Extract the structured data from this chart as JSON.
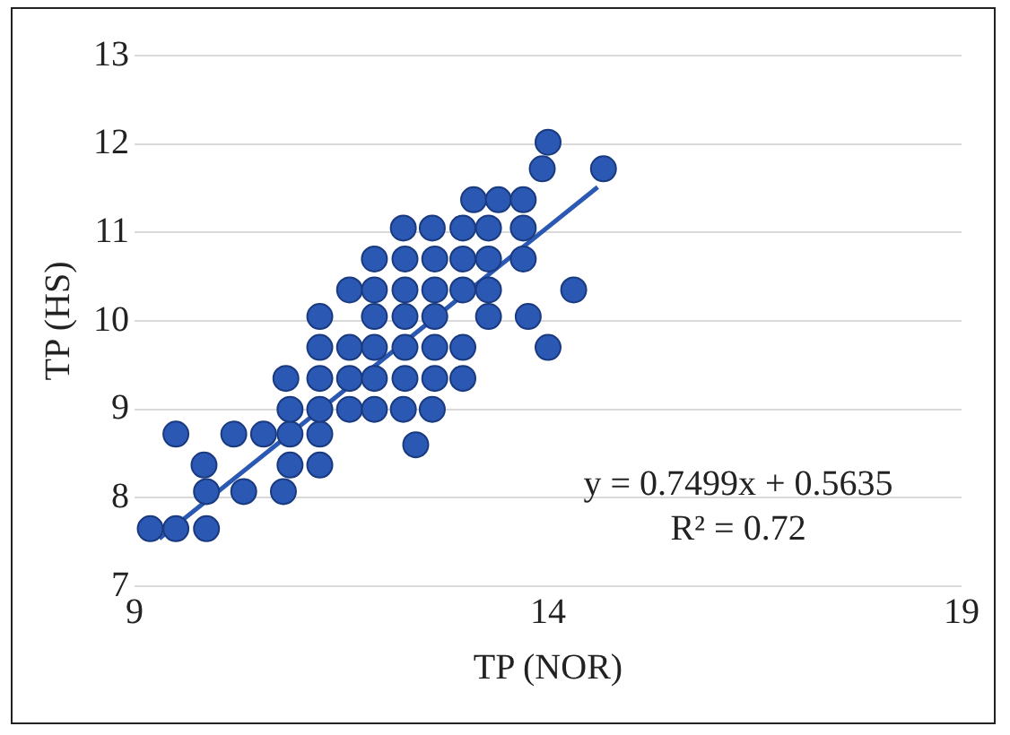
{
  "chart_data": {
    "type": "scatter",
    "xlabel": "TP (NOR)",
    "ylabel": "TP (HS)",
    "xlim": [
      9,
      19
    ],
    "xticks": [
      9,
      14,
      19
    ],
    "ylim": [
      7,
      13
    ],
    "yticks": [
      7,
      8,
      9,
      10,
      11,
      12,
      13
    ],
    "grid": "y",
    "legend": false,
    "marker": "circle",
    "annotations": [
      "y = 0.7499x + 0.5635",
      "R² = 0.72"
    ],
    "series": [
      {
        "color": "#2b58b2",
        "x": [
          9.19,
          9.5,
          9.87,
          9.87,
          10.32,
          10.8,
          9.84,
          10.88,
          11.24,
          9.5,
          10.2,
          10.56,
          10.88,
          11.24,
          12.4,
          10.88,
          11.24,
          11.6,
          11.9,
          12.25,
          12.6,
          10.83,
          11.24,
          11.6,
          11.9,
          12.27,
          12.63,
          12.97,
          11.24,
          11.6,
          11.9,
          12.27,
          12.63,
          12.97,
          14.0,
          11.24,
          11.9,
          12.27,
          12.63,
          13.28,
          13.76,
          11.6,
          11.9,
          12.27,
          12.63,
          12.97,
          13.28,
          14.31,
          11.9,
          12.27,
          12.63,
          12.97,
          13.28,
          13.7,
          12.25,
          12.6,
          12.97,
          13.28,
          13.7,
          13.1,
          13.4,
          13.7,
          13.93,
          14.67,
          14.0
        ],
        "values": [
          7.65,
          7.65,
          7.65,
          8.07,
          8.07,
          8.07,
          8.37,
          8.37,
          8.37,
          8.72,
          8.72,
          8.72,
          8.72,
          8.72,
          8.6,
          9.0,
          9.0,
          9.0,
          9.0,
          9.0,
          9.0,
          9.35,
          9.35,
          9.35,
          9.35,
          9.35,
          9.35,
          9.35,
          9.7,
          9.7,
          9.7,
          9.7,
          9.7,
          9.7,
          9.7,
          10.05,
          10.05,
          10.05,
          10.05,
          10.05,
          10.05,
          10.35,
          10.35,
          10.35,
          10.35,
          10.35,
          10.35,
          10.35,
          10.7,
          10.7,
          10.7,
          10.7,
          10.7,
          10.7,
          11.05,
          11.05,
          11.05,
          11.05,
          11.05,
          11.37,
          11.37,
          11.37,
          11.72,
          11.72,
          12.02
        ]
      },
      {
        "type": "line",
        "color": "#2b58b2",
        "x": [
          9.3,
          14.6
        ],
        "values": [
          7.538,
          11.512
        ],
        "marker": "none",
        "line_style": "solid"
      }
    ]
  }
}
